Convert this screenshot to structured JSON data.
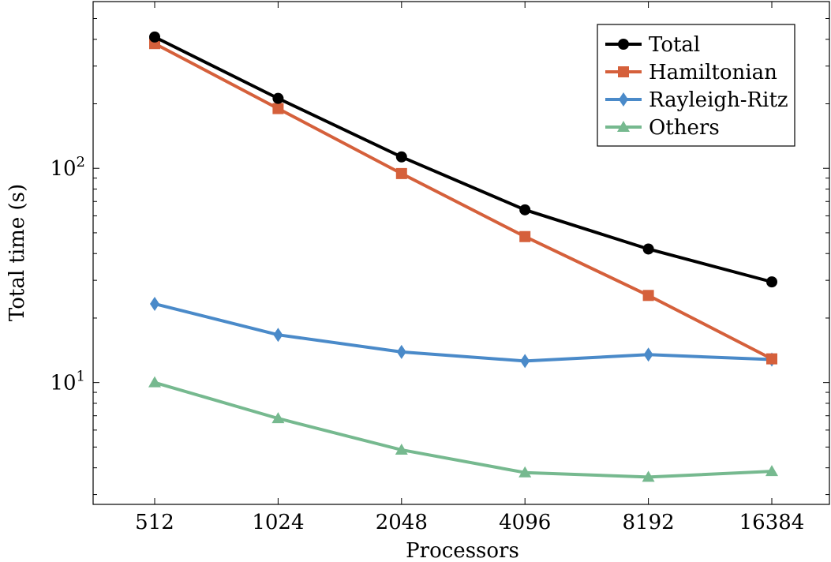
{
  "chart_data": {
    "type": "line",
    "xlabel": "Processors",
    "ylabel": "Total time (s)",
    "categories": [
      "512",
      "1024",
      "2048",
      "4096",
      "8192",
      "16384"
    ],
    "y_scale": "log",
    "ylim": [
      2.7,
      600
    ],
    "y_ticks": [
      {
        "base": "10",
        "exp": "1",
        "value": 10
      },
      {
        "base": "10",
        "exp": "2",
        "value": 100
      }
    ],
    "grid": false,
    "legend_position": "top-right",
    "series": [
      {
        "name": "Total",
        "color": "#000000",
        "marker": "circle",
        "values": [
          410,
          212,
          113,
          64,
          42,
          29.5
        ]
      },
      {
        "name": "Hamiltonian",
        "color": "#d5603b",
        "marker": "square",
        "values": [
          382,
          190,
          94.5,
          48,
          25.5,
          12.9
        ]
      },
      {
        "name": "Rayleigh-Ritz",
        "color": "#4a8ac9",
        "marker": "diamond",
        "values": [
          23.3,
          16.7,
          13.9,
          12.6,
          13.5,
          12.8
        ]
      },
      {
        "name": "Others",
        "color": "#76b98f",
        "marker": "triangle",
        "values": [
          10.0,
          6.8,
          4.85,
          3.8,
          3.62,
          3.85
        ]
      }
    ]
  }
}
